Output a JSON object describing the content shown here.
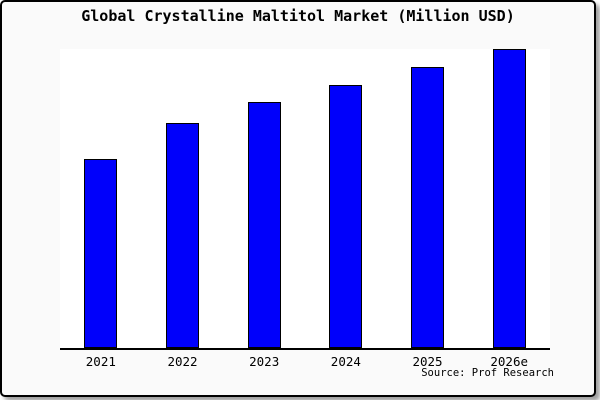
{
  "header": {
    "title": "Global Crystalline Maltitol Market (Million USD)"
  },
  "chart_data": {
    "type": "bar",
    "title": "Global Crystalline Maltitol Market (Million USD)",
    "categories": [
      "2021",
      "2022",
      "2023",
      "2024",
      "2025",
      "2026e"
    ],
    "values": [
      63,
      75,
      82,
      88,
      94,
      100
    ],
    "value_scale": "relative height as percent of tallest (2026e) bar; y-axis has no tick labels in source chart",
    "xlabel": "",
    "ylabel": "",
    "ylim": [
      0,
      101
    ],
    "grid": false,
    "legend": false,
    "y_axis_labeled": false,
    "bar_color": "#0000fb",
    "bar_edge_color": "#000000",
    "axis_color": "#000000",
    "plot_background": "#ffffff",
    "figure_background": "#fafafa"
  },
  "footer": {
    "source_label": "Source: Prof Research"
  }
}
